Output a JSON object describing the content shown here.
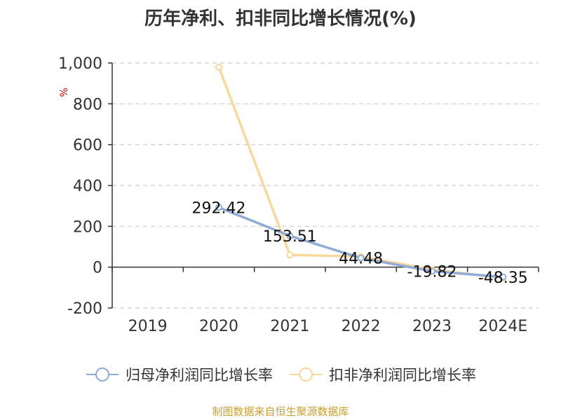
{
  "chart_data": {
    "type": "line",
    "title": "历年净利、扣非同比增长情况(%)",
    "ylabel": "%",
    "categories": [
      "2019",
      "2020",
      "2021",
      "2022",
      "2023",
      "2024E"
    ],
    "ylim": [
      -200,
      1000
    ],
    "yticks": [
      -200,
      0,
      200,
      400,
      600,
      800,
      1000
    ],
    "ytick_labels": [
      "-200",
      "0",
      "200",
      "400",
      "600",
      "800",
      "1,000"
    ],
    "grid": true,
    "legend_position": "bottom",
    "series": [
      {
        "name": "归母净利润同比增长率",
        "color": "#8fabd8",
        "values": [
          null,
          292.42,
          153.51,
          44.48,
          -19.82,
          -48.35
        ],
        "labels": [
          "",
          "292.42",
          "153.51",
          "44.48",
          "-19.82",
          "-48.35"
        ]
      },
      {
        "name": "扣非净利润同比增长率",
        "color": "#fad89a",
        "values": [
          null,
          980,
          60,
          52,
          -12,
          -52
        ],
        "labels": [
          "",
          "",
          "",
          "",
          "",
          ""
        ]
      }
    ]
  },
  "footer": {
    "source": "制图数据来自恒生聚源数据库"
  },
  "colors": {
    "axis": "#333333",
    "grid": "#cccccc",
    "ylabel": "#cc0000",
    "source": "#c8a030"
  }
}
